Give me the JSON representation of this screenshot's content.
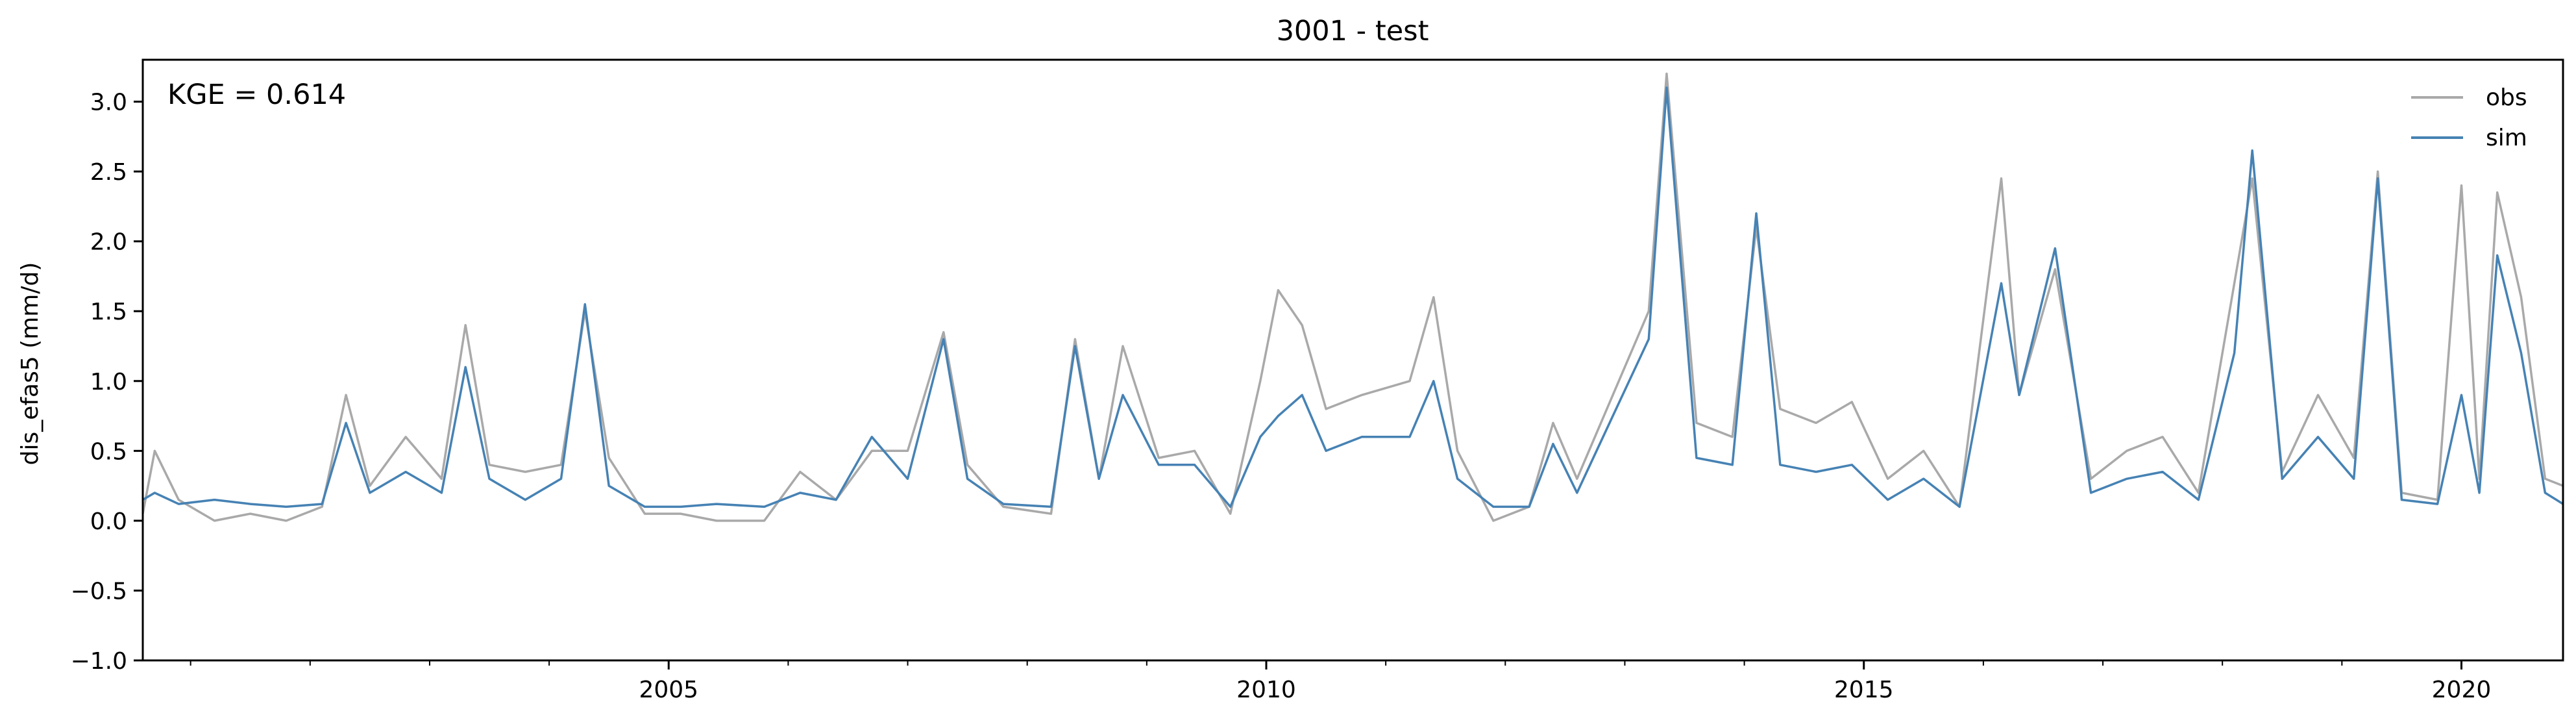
{
  "chart_data": {
    "type": "line",
    "title": "3001 - test",
    "xlabel": "",
    "ylabel": "dis_efas5 (mm/d)",
    "annotation": "KGE = 0.614",
    "xlim": [
      2000.6,
      2020.85
    ],
    "ylim": [
      -1.0,
      3.3
    ],
    "x_ticks": [
      2005,
      2010,
      2015,
      2020
    ],
    "x_tick_labels": [
      "2005",
      "2010",
      "2015",
      "2020"
    ],
    "y_ticks": [
      -1.0,
      -0.5,
      0.0,
      0.5,
      1.0,
      1.5,
      2.0,
      2.5,
      3.0
    ],
    "y_tick_labels": [
      "−1.0",
      "−0.5",
      "0.0",
      "0.5",
      "1.0",
      "1.5",
      "2.0",
      "2.5",
      "3.0"
    ],
    "grid": false,
    "legend_position": "top-right",
    "series": [
      {
        "name": "obs",
        "color": "#a9a9a9",
        "x": [
          2000.6,
          2000.7,
          2000.9,
          2001.2,
          2001.5,
          2001.8,
          2002.1,
          2002.3,
          2002.5,
          2002.8,
          2003.1,
          2003.3,
          2003.5,
          2003.8,
          2004.1,
          2004.3,
          2004.5,
          2004.8,
          2005.1,
          2005.4,
          2005.8,
          2006.1,
          2006.4,
          2006.7,
          2007.0,
          2007.3,
          2007.5,
          2007.8,
          2008.2,
          2008.4,
          2008.6,
          2008.8,
          2009.1,
          2009.4,
          2009.7,
          2009.95,
          2010.1,
          2010.3,
          2010.5,
          2010.8,
          2011.2,
          2011.4,
          2011.6,
          2011.9,
          2012.2,
          2012.4,
          2012.6,
          2012.9,
          2013.2,
          2013.35,
          2013.6,
          2013.9,
          2014.1,
          2014.3,
          2014.6,
          2014.9,
          2015.2,
          2015.5,
          2015.8,
          2016.15,
          2016.3,
          2016.6,
          2016.9,
          2017.2,
          2017.5,
          2017.8,
          2018.1,
          2018.25,
          2018.5,
          2018.8,
          2019.1,
          2019.3,
          2019.5,
          2019.8,
          2020.0,
          2020.15,
          2020.3,
          2020.5,
          2020.7,
          2020.85
        ],
        "y": [
          0.05,
          0.5,
          0.15,
          0.0,
          0.05,
          0.0,
          0.1,
          0.9,
          0.25,
          0.6,
          0.3,
          1.4,
          0.4,
          0.35,
          0.4,
          1.5,
          0.45,
          0.05,
          0.05,
          0.0,
          0.0,
          0.35,
          0.15,
          0.5,
          0.5,
          1.35,
          0.4,
          0.1,
          0.05,
          1.3,
          0.3,
          1.25,
          0.45,
          0.5,
          0.05,
          1.0,
          1.65,
          1.4,
          0.8,
          0.9,
          1.0,
          1.6,
          0.5,
          0.0,
          0.1,
          0.7,
          0.3,
          0.9,
          1.5,
          3.2,
          0.7,
          0.6,
          2.1,
          0.8,
          0.7,
          0.85,
          0.3,
          0.5,
          0.1,
          2.45,
          0.9,
          1.8,
          0.3,
          0.5,
          0.6,
          0.2,
          1.7,
          2.45,
          0.35,
          0.9,
          0.45,
          2.5,
          0.2,
          0.15,
          2.4,
          0.3,
          2.35,
          1.6,
          0.3,
          0.25
        ]
      },
      {
        "name": "sim",
        "color": "#4682b4",
        "x": [
          2000.6,
          2000.7,
          2000.9,
          2001.2,
          2001.5,
          2001.8,
          2002.1,
          2002.3,
          2002.5,
          2002.8,
          2003.1,
          2003.3,
          2003.5,
          2003.8,
          2004.1,
          2004.3,
          2004.5,
          2004.8,
          2005.1,
          2005.4,
          2005.8,
          2006.1,
          2006.4,
          2006.7,
          2007.0,
          2007.3,
          2007.5,
          2007.8,
          2008.2,
          2008.4,
          2008.6,
          2008.8,
          2009.1,
          2009.4,
          2009.7,
          2009.95,
          2010.1,
          2010.3,
          2010.5,
          2010.8,
          2011.2,
          2011.4,
          2011.6,
          2011.9,
          2012.2,
          2012.4,
          2012.6,
          2012.9,
          2013.2,
          2013.35,
          2013.6,
          2013.9,
          2014.1,
          2014.3,
          2014.6,
          2014.9,
          2015.2,
          2015.5,
          2015.8,
          2016.15,
          2016.3,
          2016.6,
          2016.9,
          2017.2,
          2017.5,
          2017.8,
          2018.1,
          2018.25,
          2018.5,
          2018.8,
          2019.1,
          2019.3,
          2019.5,
          2019.8,
          2020.0,
          2020.15,
          2020.3,
          2020.5,
          2020.7,
          2020.85
        ],
        "y": [
          0.15,
          0.2,
          0.12,
          0.15,
          0.12,
          0.1,
          0.12,
          0.7,
          0.2,
          0.35,
          0.2,
          1.1,
          0.3,
          0.15,
          0.3,
          1.55,
          0.25,
          0.1,
          0.1,
          0.12,
          0.1,
          0.2,
          0.15,
          0.6,
          0.3,
          1.3,
          0.3,
          0.12,
          0.1,
          1.25,
          0.3,
          0.9,
          0.4,
          0.4,
          0.1,
          0.6,
          0.75,
          0.9,
          0.5,
          0.6,
          0.6,
          1.0,
          0.3,
          0.1,
          0.1,
          0.55,
          0.2,
          0.75,
          1.3,
          3.1,
          0.45,
          0.4,
          2.2,
          0.4,
          0.35,
          0.4,
          0.15,
          0.3,
          0.1,
          1.7,
          0.9,
          1.95,
          0.2,
          0.3,
          0.35,
          0.15,
          1.2,
          2.65,
          0.3,
          0.6,
          0.3,
          2.45,
          0.15,
          0.12,
          0.9,
          0.2,
          1.9,
          1.2,
          0.2,
          0.12
        ]
      }
    ]
  }
}
